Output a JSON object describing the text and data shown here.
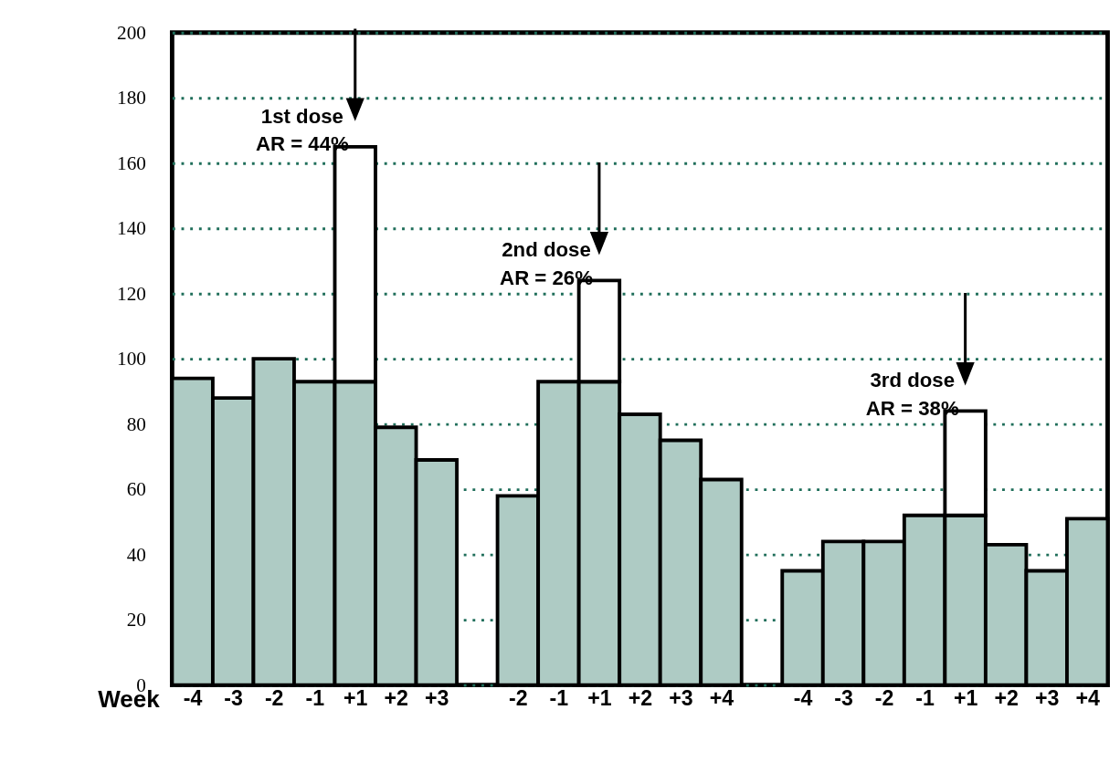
{
  "chart_data": {
    "type": "bar",
    "stacked": true,
    "xlabel": "Week",
    "categories": [
      "-4",
      "-3",
      "-2",
      "-1",
      "+1",
      "+2",
      "+3",
      null,
      "-2",
      "-1",
      "+1",
      "+2",
      "+3",
      "+4",
      null,
      "-4",
      "-3",
      "-2",
      "-1",
      "+1",
      "+2",
      "+3",
      "+4"
    ],
    "series": [
      {
        "color": "#aecbc4",
        "values": [
          94,
          88,
          100,
          93,
          93,
          79,
          69,
          null,
          58,
          93,
          93,
          83,
          75,
          63,
          null,
          35,
          44,
          44,
          52,
          52,
          43,
          35,
          51
        ]
      },
      {
        "color": "#ffffff",
        "values": [
          null,
          null,
          null,
          null,
          72,
          null,
          null,
          null,
          null,
          null,
          31,
          null,
          null,
          null,
          null,
          null,
          null,
          null,
          null,
          32,
          null,
          null,
          null
        ]
      }
    ],
    "annotations": [
      "1st dose\nAR = 44%",
      "2nd dose\nAR = 26%",
      "3rd dose\nAR = 38%"
    ],
    "ylim": [
      0,
      200
    ],
    "yticks": [
      0,
      20,
      40,
      60,
      80,
      100,
      120,
      140,
      160,
      180,
      200
    ],
    "grid": "y"
  }
}
